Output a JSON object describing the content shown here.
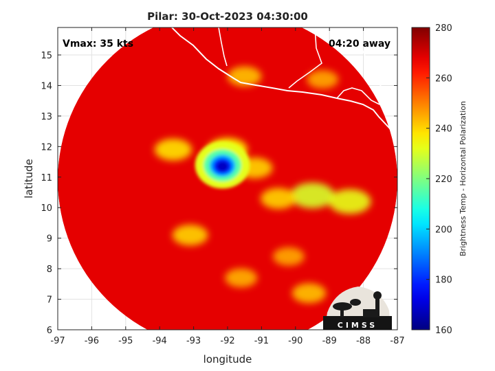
{
  "chart_data": {
    "type": "heatmap",
    "title": "Pilar: 30-Oct-2023 04:30:00",
    "xlabel": "longitude",
    "ylabel": "latitude",
    "xlim": [
      -97,
      -87
    ],
    "ylim": [
      6,
      15.9
    ],
    "x_ticks": [
      "-97",
      "-96",
      "-95",
      "-94",
      "-93",
      "-92",
      "-91",
      "-90",
      "-89",
      "-88",
      "-87"
    ],
    "y_ticks": [
      "6",
      "7",
      "8",
      "9",
      "10",
      "11",
      "12",
      "13",
      "14",
      "15"
    ],
    "grid": true,
    "swath_center": [
      -92.0,
      10.9
    ],
    "swath_radius_deg": 5.0,
    "storm_center": [
      -92.15,
      11.35
    ],
    "cold_core_min": 162,
    "background_tb": 268,
    "cold_features": [
      {
        "x": -92.15,
        "y": 11.35,
        "tb": 165
      },
      {
        "x": -92.2,
        "y": 11.45,
        "tb": 200
      },
      {
        "x": -92.0,
        "y": 11.9,
        "tb": 235
      },
      {
        "x": -93.6,
        "y": 11.9,
        "tb": 238
      },
      {
        "x": -91.2,
        "y": 11.3,
        "tb": 240
      },
      {
        "x": -89.5,
        "y": 10.4,
        "tb": 230
      },
      {
        "x": -88.4,
        "y": 10.2,
        "tb": 232
      },
      {
        "x": -90.5,
        "y": 10.3,
        "tb": 240
      },
      {
        "x": -91.5,
        "y": 14.3,
        "tb": 242
      },
      {
        "x": -89.2,
        "y": 14.2,
        "tb": 245
      },
      {
        "x": -93.1,
        "y": 9.1,
        "tb": 240
      },
      {
        "x": -90.2,
        "y": 8.4,
        "tb": 245
      },
      {
        "x": -91.6,
        "y": 7.7,
        "tb": 244
      },
      {
        "x": -89.6,
        "y": 7.2,
        "tb": 242
      }
    ],
    "annotations": {
      "vmax": "Vmax: 35 kts",
      "time_away": "04:20 away"
    },
    "colorbar": {
      "label": "Brightness Temp - Horizontal Polarization",
      "range": [
        160,
        280
      ],
      "ticks": [
        "280",
        "260",
        "240",
        "220",
        "200",
        "180",
        "160"
      ],
      "colormap": "jet"
    },
    "logo_text": "CIMSS"
  }
}
